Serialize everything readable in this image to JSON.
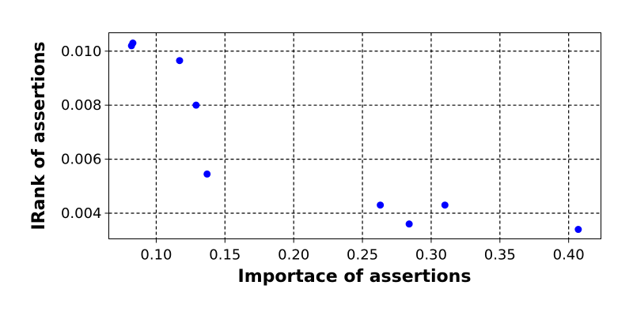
{
  "chart_data": {
    "type": "scatter",
    "title": "",
    "xlabel": "Importace of assertions",
    "ylabel": "IRank of assertions",
    "xlim": [
      0.0655,
      0.4235
    ],
    "ylim": [
      0.00305,
      0.01068
    ],
    "xticks": [
      0.1,
      0.15,
      0.2,
      0.25,
      0.3,
      0.35,
      0.4
    ],
    "xtick_labels": [
      "0.10",
      "0.15",
      "0.20",
      "0.25",
      "0.30",
      "0.35",
      "0.40"
    ],
    "yticks": [
      0.004,
      0.006,
      0.008,
      0.01
    ],
    "ytick_labels": [
      "0.004",
      "0.006",
      "0.008",
      "0.010"
    ],
    "grid": true,
    "grid_style": "dashed",
    "marker_color": "#0000ff",
    "series": [
      {
        "name": "assertions",
        "points": [
          {
            "x": 0.082,
            "y": 0.0102
          },
          {
            "x": 0.083,
            "y": 0.0103
          },
          {
            "x": 0.117,
            "y": 0.00965
          },
          {
            "x": 0.129,
            "y": 0.008
          },
          {
            "x": 0.137,
            "y": 0.00545
          },
          {
            "x": 0.263,
            "y": 0.0043
          },
          {
            "x": 0.284,
            "y": 0.0036
          },
          {
            "x": 0.31,
            "y": 0.0043
          },
          {
            "x": 0.407,
            "y": 0.0034
          }
        ]
      }
    ]
  }
}
